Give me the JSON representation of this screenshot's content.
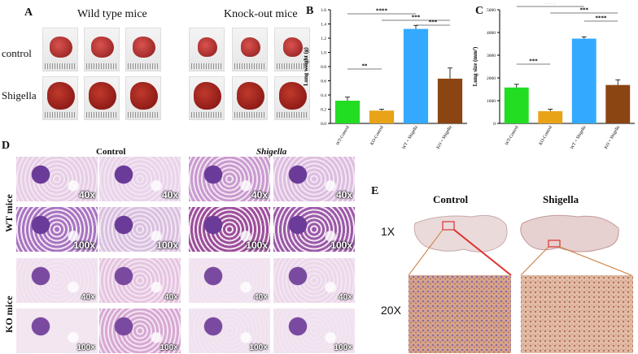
{
  "panel_a": {
    "letter": "A",
    "header_wt": "Wild type mice",
    "header_ko": "Knock-out mice",
    "row_control": "control",
    "row_shigella": "Shigella"
  },
  "panel_b": {
    "letter": "B"
  },
  "panel_c": {
    "letter": "C"
  },
  "panel_d": {
    "letter": "D",
    "header_control": "Control",
    "header_shigella": "Shigella",
    "row_wt": "WT mice",
    "row_ko": "KO mice",
    "mags": [
      [
        "40x",
        "40x",
        "40x",
        "40x"
      ],
      [
        "100x",
        "100x",
        "100x",
        "100x"
      ],
      [
        "40×",
        "40×",
        "40×",
        "40×"
      ],
      [
        "100×",
        "100×",
        "100×",
        "100×"
      ]
    ]
  },
  "panel_e": {
    "letter": "E",
    "header_control": "Control",
    "header_shigella": "Shigella",
    "row_1x": "1X",
    "row_20x": "20X"
  },
  "colors": {
    "wt_control": "#22dd22",
    "ko_control": "#e8a317",
    "wt_shigella": "#33aaff",
    "ko_shigella": "#8b4513",
    "he_stain": "#9a5fb5",
    "ihc_brown": "#c08060"
  },
  "chart_data": [
    {
      "type": "bar",
      "panel": "B",
      "ylabel": "Lung weight (g)",
      "ylim": [
        0,
        1.6
      ],
      "yticks": [
        "0.0",
        "0.2",
        "0.4",
        "0.6",
        "0.8",
        "1.0",
        "1.2",
        "1.4",
        "1.6"
      ],
      "categories": [
        "WT-Control",
        "KO-Control",
        "WT + Shigella",
        "KO + Shigella"
      ],
      "values": [
        0.32,
        0.18,
        1.33,
        0.63
      ],
      "errors": [
        0.05,
        0.02,
        0.05,
        0.15
      ],
      "significance": [
        {
          "from": 0,
          "to": 1,
          "label": "**"
        },
        {
          "from": 0,
          "to": 2,
          "label": "****"
        },
        {
          "from": 1,
          "to": 3,
          "label": "***"
        },
        {
          "from": 2,
          "to": 3,
          "label": "***"
        }
      ]
    },
    {
      "type": "bar",
      "panel": "C",
      "ylabel": "Lung size (mm²)",
      "ylim": [
        0,
        5000
      ],
      "yticks": [
        "0",
        "1000",
        "2000",
        "3000",
        "4000",
        "5000"
      ],
      "categories": [
        "WT-Control",
        "KO-Control",
        "WT + Shigella",
        "KO + Shigella"
      ],
      "values": [
        1580,
        540,
        3730,
        1690
      ],
      "errors": [
        140,
        90,
        80,
        230
      ],
      "significance": [
        {
          "from": 0,
          "to": 1,
          "label": "***"
        },
        {
          "from": 0,
          "to": 2,
          "label": "****"
        },
        {
          "from": 1,
          "to": 3,
          "label": "***"
        },
        {
          "from": 2,
          "to": 3,
          "label": "****"
        }
      ]
    }
  ]
}
